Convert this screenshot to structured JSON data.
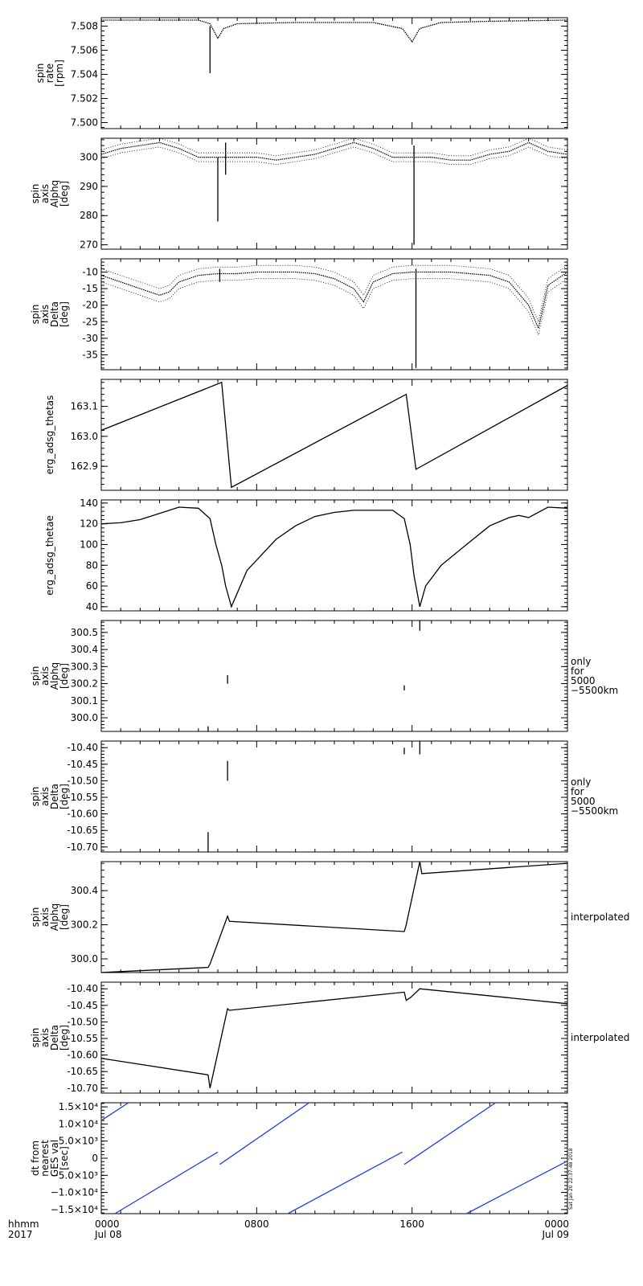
{
  "footer": {
    "left_line1": "hhmm",
    "left_line2": "2017",
    "x_ticks": [
      {
        "l1": "0000",
        "l2": "Jul 08",
        "hour": 0
      },
      {
        "l1": "0800",
        "l2": "",
        "hour": 8
      },
      {
        "l1": "1600",
        "l2": "",
        "hour": 16
      },
      {
        "l1": "0000",
        "l2": "Jul 09",
        "hour": 24
      }
    ]
  },
  "stamp": "Sat Jan 20 22:37:48 2018",
  "colors": {
    "ink": "#000000",
    "blue": "#1f3fe0"
  },
  "chart_data": [
    {
      "type": "scatter",
      "ylabel": [
        "spin",
        "rate",
        "[rpm]"
      ],
      "ylim": [
        7.4995,
        7.5087
      ],
      "yticks": [
        7.5,
        7.502,
        7.504,
        7.506,
        7.508
      ],
      "ytick_labels": [
        "7.500",
        "7.502",
        "7.504",
        "7.506",
        "7.508"
      ],
      "side_note": [],
      "series": [
        {
          "x": [
            0,
            5.0,
            5.6,
            6.0,
            6.3,
            7.0,
            10,
            14,
            15.5,
            16.0,
            16.4,
            17.5,
            20,
            24
          ],
          "y": [
            7.5085,
            7.5085,
            7.5082,
            7.507,
            7.5078,
            7.5082,
            7.5083,
            7.5083,
            7.5078,
            7.5067,
            7.5078,
            7.5083,
            7.5084,
            7.5085
          ]
        },
        {
          "x": [
            5.6,
            5.6
          ],
          "y": [
            7.508,
            7.5041
          ],
          "mode": "segment"
        }
      ]
    },
    {
      "type": "scatter",
      "ylabel": [
        "spin",
        "axis",
        "Alphq",
        "[deg]"
      ],
      "ylim": [
        268.5,
        306.5
      ],
      "yticks": [
        270,
        280,
        290,
        300
      ],
      "ytick_labels": [
        "270",
        "280",
        "290",
        "300"
      ],
      "side_note": [],
      "series": [
        {
          "x": [
            0,
            1,
            2,
            3,
            4,
            5,
            6,
            6.3,
            7,
            8,
            9,
            10,
            11,
            12,
            13,
            14,
            15,
            16,
            16.3,
            17,
            18,
            19,
            20,
            21,
            22,
            23,
            24
          ],
          "y": [
            301,
            303,
            304,
            305,
            303,
            300,
            300,
            300,
            300,
            300,
            299,
            300,
            301,
            303,
            305,
            303,
            300,
            300,
            300,
            300,
            299,
            299,
            301,
            302,
            305,
            302,
            301
          ],
          "spread": 1.5
        },
        {
          "x": [
            6.0,
            6.0
          ],
          "y": [
            300,
            278
          ],
          "mode": "segment"
        },
        {
          "x": [
            6.4,
            6.4
          ],
          "y": [
            305,
            294
          ],
          "mode": "segment"
        },
        {
          "x": [
            16.1,
            16.1
          ],
          "y": [
            304,
            270
          ],
          "mode": "segment"
        }
      ]
    },
    {
      "type": "scatter",
      "ylabel": [
        "spin",
        "axis",
        "Delta",
        "[deg]"
      ],
      "ylim": [
        -39.5,
        -6.0
      ],
      "yticks": [
        -35,
        -30,
        -25,
        -20,
        -15,
        -10
      ],
      "ytick_labels": [
        "-35",
        "-30",
        "-25",
        "-20",
        "-15",
        "-10"
      ],
      "side_note": [],
      "series": [
        {
          "x": [
            0,
            1,
            2,
            3,
            3.5,
            4,
            5,
            6,
            7,
            8,
            9,
            10,
            11,
            12,
            13,
            13.5,
            14,
            15,
            16,
            17,
            18,
            19,
            20,
            21,
            22,
            22.5,
            23,
            24
          ],
          "y": [
            -11,
            -13,
            -15,
            -17,
            -16,
            -13,
            -11,
            -10.5,
            -10.5,
            -10,
            -10,
            -10,
            -10.5,
            -12,
            -15,
            -19,
            -13,
            -10.5,
            -10,
            -10,
            -10,
            -10.5,
            -11,
            -13,
            -20,
            -27,
            -14,
            -10
          ],
          "spread": 2
        },
        {
          "x": [
            6.1,
            6.1
          ],
          "y": [
            -9,
            -13
          ],
          "mode": "segment"
        },
        {
          "x": [
            16.2,
            16.2
          ],
          "y": [
            -9,
            -39
          ],
          "mode": "segment"
        }
      ]
    },
    {
      "type": "line",
      "ylabel": [
        "erg_adsg_thetas"
      ],
      "ylim": [
        162.82,
        163.19
      ],
      "yticks": [
        162.9,
        163.0,
        163.1
      ],
      "ytick_labels": [
        "162.9",
        "163.0",
        "163.1"
      ],
      "side_note": [],
      "series": [
        {
          "x": [
            0,
            6.2,
            6.7,
            15.7,
            16.2,
            24
          ],
          "y": [
            163.02,
            163.18,
            162.83,
            163.14,
            162.89,
            163.17
          ]
        }
      ]
    },
    {
      "type": "line",
      "ylabel": [
        "erg_adsg_thetae"
      ],
      "ylim": [
        36,
        143
      ],
      "yticks": [
        40,
        60,
        80,
        100,
        120,
        140
      ],
      "ytick_labels": [
        "40",
        "60",
        "80",
        "100",
        "120",
        "140"
      ],
      "side_note": [],
      "series": [
        {
          "x": [
            0,
            1,
            2,
            3,
            4,
            5,
            5.6,
            5.9,
            6.2,
            6.4,
            6.7,
            7.5,
            9,
            10,
            11,
            12,
            13,
            14,
            15,
            15.6,
            15.9,
            16.1,
            16.4,
            16.7,
            17.5,
            19,
            20,
            21,
            21.5,
            22,
            23,
            24
          ],
          "y": [
            120,
            121,
            124,
            130,
            136,
            135,
            125,
            100,
            80,
            60,
            40,
            75,
            105,
            118,
            127,
            131,
            133,
            133,
            133,
            125,
            100,
            70,
            40,
            60,
            80,
            103,
            118,
            126,
            128,
            126,
            136,
            135
          ]
        }
      ]
    },
    {
      "type": "scatter",
      "ylabel": [
        "spin",
        "axis",
        "Alphq",
        "[deg]"
      ],
      "ylim": [
        299.92,
        300.57
      ],
      "yticks": [
        300.0,
        300.1,
        300.2,
        300.3,
        300.4,
        300.5
      ],
      "ytick_labels": [
        "300.0",
        "300.1",
        "300.2",
        "300.3",
        "300.4",
        "300.5"
      ],
      "side_note": [
        "only",
        "for",
        "5000",
        "−5500km"
      ],
      "series": [
        {
          "x": [
            5.5,
            5.5
          ],
          "y": [
            299.95,
            299.92
          ],
          "mode": "segment"
        },
        {
          "x": [
            6.5,
            6.5
          ],
          "y": [
            300.25,
            300.2
          ],
          "mode": "segment"
        },
        {
          "x": [
            15.6,
            15.6
          ],
          "y": [
            300.19,
            300.16
          ],
          "mode": "segment"
        },
        {
          "x": [
            16.4,
            16.4
          ],
          "y": [
            300.57,
            300.51
          ],
          "mode": "segment"
        }
      ]
    },
    {
      "type": "scatter",
      "ylabel": [
        "spin",
        "axis",
        "Delta",
        "[deg]"
      ],
      "ylim": [
        -10.715,
        -10.38
      ],
      "yticks": [
        -10.7,
        -10.65,
        -10.6,
        -10.55,
        -10.5,
        -10.45,
        -10.4
      ],
      "ytick_labels": [
        "-10.70",
        "-10.65",
        "-10.60",
        "-10.55",
        "-10.50",
        "-10.45",
        "-10.40"
      ],
      "side_note": [
        "only",
        "for",
        "5000",
        "−5500km"
      ],
      "series": [
        {
          "x": [
            5.5,
            5.5
          ],
          "y": [
            -10.655,
            -10.715
          ],
          "mode": "segment"
        },
        {
          "x": [
            6.5,
            6.5
          ],
          "y": [
            -10.44,
            -10.5
          ],
          "mode": "segment"
        },
        {
          "x": [
            15.6,
            15.6
          ],
          "y": [
            -10.4,
            -10.42
          ],
          "mode": "segment"
        },
        {
          "x": [
            16.4,
            16.4
          ],
          "y": [
            -10.38,
            -10.42
          ],
          "mode": "segment"
        }
      ]
    },
    {
      "type": "line",
      "ylabel": [
        "spin",
        "axis",
        "Alphq",
        "[deg]"
      ],
      "ylim": [
        299.92,
        300.57
      ],
      "yticks": [
        300.0,
        300.2,
        300.4
      ],
      "ytick_labels": [
        "300.0",
        "300.2",
        "300.4"
      ],
      "side_note": [
        "interpolated"
      ],
      "series": [
        {
          "x": [
            0,
            5.5,
            5.6,
            6.5,
            6.6,
            15.6,
            15.7,
            16.4,
            16.5,
            24
          ],
          "y": [
            299.92,
            299.95,
            299.97,
            300.25,
            300.22,
            300.16,
            300.2,
            300.57,
            300.5,
            300.56
          ]
        }
      ]
    },
    {
      "type": "line",
      "ylabel": [
        "spin",
        "axis",
        "Delta",
        "[deg]"
      ],
      "ylim": [
        -10.715,
        -10.38
      ],
      "yticks": [
        -10.7,
        -10.65,
        -10.6,
        -10.55,
        -10.5,
        -10.45,
        -10.4
      ],
      "ytick_labels": [
        "-10.70",
        "-10.65",
        "-10.60",
        "-10.55",
        "-10.50",
        "-10.45",
        "-10.40"
      ],
      "side_note": [
        "interpolated"
      ],
      "series": [
        {
          "x": [
            0,
            5.5,
            5.6,
            6.5,
            6.6,
            15.6,
            15.7,
            15.95,
            16.4,
            24
          ],
          "y": [
            -10.61,
            -10.66,
            -10.7,
            -10.46,
            -10.465,
            -10.41,
            -10.435,
            -10.425,
            -10.4,
            -10.445
          ]
        }
      ]
    },
    {
      "type": "line",
      "ylabel": [
        "dt from",
        "nearest",
        "GES val",
        "[sec]"
      ],
      "ylim": [
        -16200,
        16200
      ],
      "yticks": [
        -15000,
        -10000,
        -5000,
        0,
        5000,
        10000,
        15000
      ],
      "ytick_labels": [
        "−1.5×10⁴",
        "−1.0×10⁴",
        "−5.0×10³",
        "0",
        "5.0×10³",
        "1.0×10⁴",
        "1.5×10⁴"
      ],
      "side_note": [],
      "color": "blue",
      "series": [
        {
          "x": [
            0,
            1.4
          ],
          "y": [
            11000,
            16200
          ]
        },
        {
          "x": [
            0.7,
            6.0
          ],
          "y": [
            -16200,
            1800
          ]
        },
        {
          "x": [
            6.1,
            10.7
          ],
          "y": [
            -1800,
            16200
          ]
        },
        {
          "x": [
            9.6,
            15.5
          ],
          "y": [
            -16200,
            1800
          ]
        },
        {
          "x": [
            15.6,
            20.3
          ],
          "y": [
            -1800,
            16200
          ]
        },
        {
          "x": [
            18.8,
            24
          ],
          "y": [
            -16200,
            -800
          ]
        }
      ]
    }
  ]
}
